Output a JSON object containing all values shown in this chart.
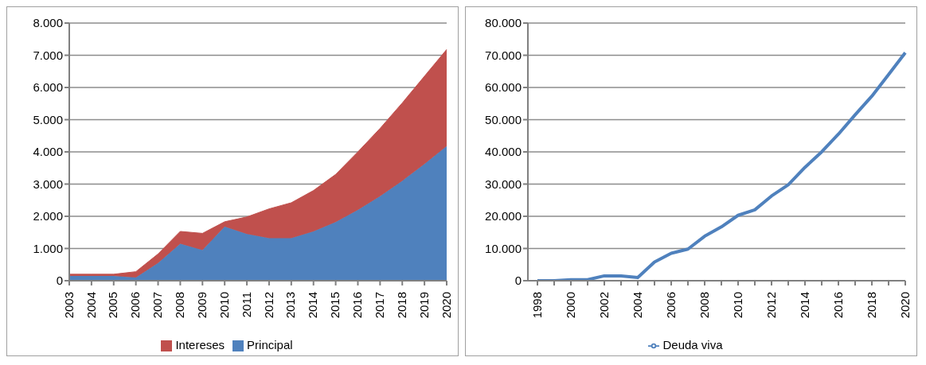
{
  "chart_data": [
    {
      "type": "area",
      "stacked": true,
      "categories": [
        "2003",
        "2004",
        "2005",
        "2006",
        "2007",
        "2008",
        "2009",
        "2010",
        "2011",
        "2012",
        "2013",
        "2014",
        "2015",
        "2016",
        "2017",
        "2018",
        "2019",
        "2020"
      ],
      "series": [
        {
          "name": "Principal",
          "color": "#4f81bd",
          "values": [
            150,
            150,
            150,
            100,
            550,
            1150,
            950,
            1680,
            1450,
            1320,
            1320,
            1530,
            1820,
            2200,
            2620,
            3100,
            3620,
            4180
          ]
        },
        {
          "name": "Intereses",
          "color": "#c0504d",
          "values": [
            50,
            50,
            50,
            180,
            280,
            380,
            520,
            150,
            530,
            910,
            1100,
            1270,
            1480,
            1800,
            2110,
            2420,
            2730,
            3000
          ]
        }
      ],
      "ylim": [
        0,
        8000
      ],
      "yticks": [
        0,
        {
          "value": 1000,
          "label": "1.000"
        },
        {
          "value": 2000,
          "label": "2.000"
        },
        {
          "value": 3000,
          "label": "3.000"
        },
        {
          "value": 4000,
          "label": "4.000"
        },
        {
          "value": 5000,
          "label": "5.000"
        },
        {
          "value": 6000,
          "label": "6.000"
        },
        {
          "value": 7000,
          "label": "7.000"
        },
        {
          "value": 8000,
          "label": "8.000"
        }
      ],
      "grid": "y",
      "legend": "bottom"
    },
    {
      "type": "line",
      "categories": [
        "1998",
        null,
        "2000",
        null,
        "2002",
        null,
        "2004",
        null,
        "2006",
        null,
        "2008",
        null,
        "2010",
        null,
        "2012",
        null,
        "2014",
        null,
        "2016",
        null,
        "2018",
        null,
        "2020"
      ],
      "series": [
        {
          "name": "Deuda viva",
          "color": "#4f81bd",
          "values": [
            0,
            0,
            300,
            300,
            1500,
            1500,
            1000,
            5800,
            8500,
            9800,
            13800,
            16700,
            20300,
            22000,
            26300,
            29800,
            35200,
            40000,
            45500,
            51500,
            57300,
            64000,
            70800
          ]
        }
      ],
      "ylim": [
        0,
        80000
      ],
      "yticks": [
        0,
        {
          "value": 10000,
          "label": "10.000"
        },
        {
          "value": 20000,
          "label": "20.000"
        },
        {
          "value": 30000,
          "label": "30.000"
        },
        {
          "value": 40000,
          "label": "40.000"
        },
        {
          "value": 50000,
          "label": "50.000"
        },
        {
          "value": 60000,
          "label": "60.000"
        },
        {
          "value": 70000,
          "label": "70.000"
        },
        {
          "value": 80000,
          "label": "80.000"
        }
      ],
      "grid": "y",
      "legend": "bottom",
      "marker": "none",
      "line_style": "solid"
    }
  ]
}
